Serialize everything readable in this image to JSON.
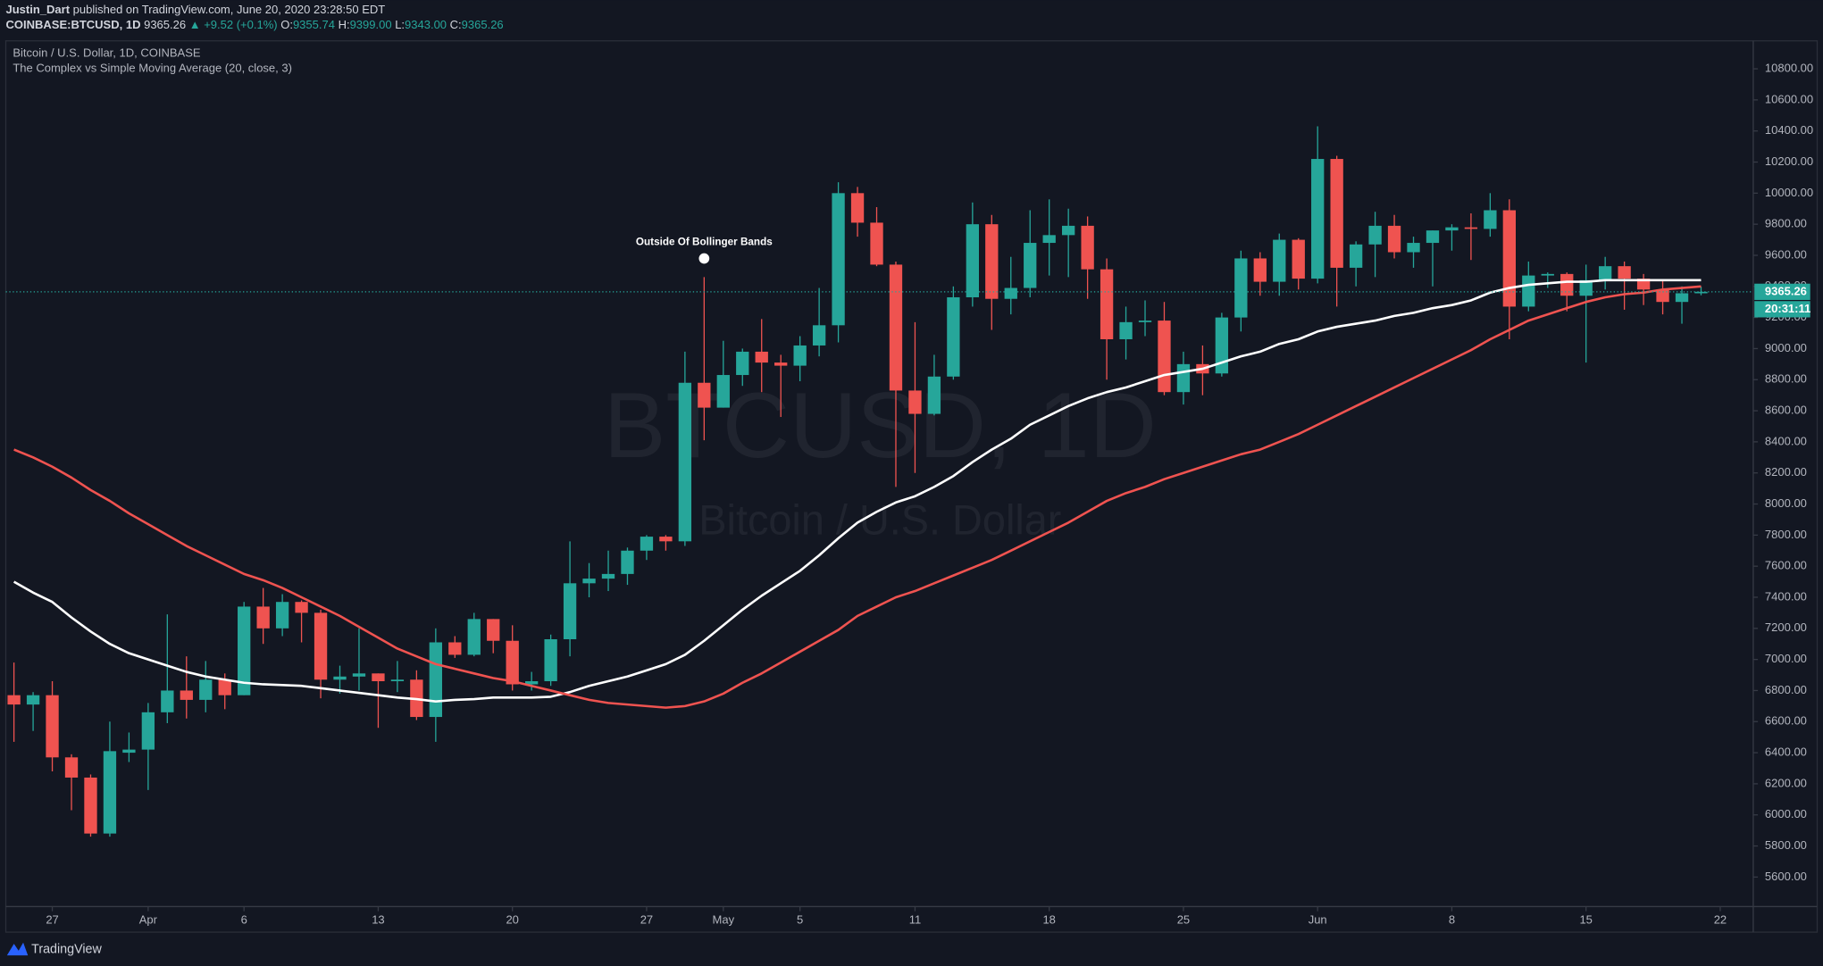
{
  "header": {
    "author": "Justin_Dart",
    "published": "published on TradingView.com, June 20, 2020 23:28:50 EDT",
    "ticker": "COINBASE:BTCUSD, 1D",
    "last": "9365.26",
    "change": "▲ +9.52 (+0.1%)",
    "ohlc": [
      {
        "label": "O:",
        "value": "9355.74"
      },
      {
        "label": "H:",
        "value": "9399.00"
      },
      {
        "label": "L:",
        "value": "9343.00"
      },
      {
        "label": "C:",
        "value": "9365.26"
      }
    ]
  },
  "footer": {
    "brand": "TradingView"
  },
  "chart_data": {
    "type": "candlestick",
    "title": "Bitcoin / U.S. Dollar, 1D, COINBASE",
    "subtitle": "The Complex vs Simple Moving Average (20, close, 3)",
    "watermark": "BTCUSD, 1D",
    "watermark_sub": "Bitcoin / U.S. Dollar",
    "up_color": "#26a69a",
    "down_color": "#ef5350",
    "grid": false,
    "categories": [
      "Mar 25",
      "Mar 26",
      "Mar 27",
      "Mar 28",
      "Mar 29",
      "Mar 30",
      "Mar 31",
      "Apr 1",
      "Apr 2",
      "Apr 3",
      "Apr 4",
      "Apr 5",
      "Apr 6",
      "Apr 7",
      "Apr 8",
      "Apr 9",
      "Apr 10",
      "Apr 11",
      "Apr 12",
      "Apr 13",
      "Apr 14",
      "Apr 15",
      "Apr 16",
      "Apr 17",
      "Apr 18",
      "Apr 19",
      "Apr 20",
      "Apr 21",
      "Apr 22",
      "Apr 23",
      "Apr 24",
      "Apr 25",
      "Apr 26",
      "Apr 27",
      "Apr 28",
      "Apr 29",
      "Apr 30",
      "May 1",
      "May 2",
      "May 3",
      "May 4",
      "May 5",
      "May 6",
      "May 7",
      "May 8",
      "May 9",
      "May 10",
      "May 11",
      "May 12",
      "May 13",
      "May 14",
      "May 15",
      "May 16",
      "May 17",
      "May 18",
      "May 19",
      "May 20",
      "May 21",
      "May 22",
      "May 23",
      "May 24",
      "May 25",
      "May 26",
      "May 27",
      "May 28",
      "May 29",
      "May 30",
      "May 31",
      "Jun 1",
      "Jun 2",
      "Jun 3",
      "Jun 4",
      "Jun 5",
      "Jun 6",
      "Jun 7",
      "Jun 8",
      "Jun 9",
      "Jun 10",
      "Jun 11",
      "Jun 12",
      "Jun 13",
      "Jun 14",
      "Jun 15",
      "Jun 16",
      "Jun 17",
      "Jun 18",
      "Jun 19",
      "Jun 20",
      "Jun 21",
      "Jun 22"
    ],
    "open": [
      6770,
      6710,
      6770,
      6370,
      6240,
      5880,
      6400,
      6420,
      6660,
      6800,
      6740,
      6870,
      6770,
      7340,
      7200,
      7370,
      7300,
      6870,
      6890,
      6910,
      6860,
      6870,
      6630,
      7110,
      7030,
      7260,
      7120,
      6840,
      6860,
      7130,
      7490,
      7520,
      7550,
      7700,
      7790,
      7760,
      8780,
      8620,
      8830,
      8980,
      8910,
      8890,
      9020,
      9150,
      10000,
      9810,
      9540,
      8730,
      8580,
      8820,
      9330,
      9800,
      9320,
      9390,
      9680,
      9730,
      9790,
      9510,
      9060,
      9170,
      9180,
      8720,
      8900,
      8840,
      9200,
      9580,
      9430,
      9700,
      9450,
      10220,
      9520,
      9670,
      9790,
      9620,
      9680,
      9760,
      9780,
      9770,
      9890,
      9270,
      9470,
      9480,
      9340,
      9440,
      9530,
      9450,
      9380,
      9300,
      9355.74,
      null
    ],
    "high": [
      6980,
      6790,
      6860,
      6390,
      6260,
      6600,
      6530,
      6720,
      7290,
      7020,
      6990,
      6910,
      7370,
      7460,
      7420,
      7380,
      7320,
      6960,
      7200,
      6910,
      6990,
      6930,
      7200,
      7150,
      7300,
      7260,
      7220,
      6920,
      7160,
      7760,
      7620,
      7700,
      7720,
      7800,
      7800,
      8980,
      9460,
      9050,
      9000,
      9190,
      8960,
      9080,
      9390,
      10070,
      10040,
      9910,
      9560,
      9170,
      8960,
      9400,
      9940,
      9860,
      9590,
      9890,
      9960,
      9900,
      9850,
      9580,
      9270,
      9310,
      9300,
      8980,
      9020,
      9230,
      9630,
      9620,
      9740,
      9710,
      10430,
      10240,
      9690,
      9880,
      9860,
      9720,
      9760,
      9800,
      9870,
      10000,
      9960,
      9560,
      9490,
      9490,
      9540,
      9590,
      9560,
      9480,
      9440,
      9400,
      9399,
      null
    ],
    "low": [
      6470,
      6540,
      6280,
      6030,
      5860,
      5860,
      6340,
      6160,
      6590,
      6620,
      6660,
      6680,
      6770,
      7100,
      7150,
      7110,
      6750,
      6780,
      6800,
      6560,
      6790,
      6610,
      6470,
      7010,
      7020,
      7040,
      6800,
      6800,
      6830,
      7020,
      7400,
      7440,
      7480,
      7640,
      7700,
      7730,
      8410,
      8620,
      8760,
      8720,
      8560,
      8790,
      8950,
      9040,
      9720,
      9530,
      8110,
      8200,
      8570,
      8800,
      9270,
      9120,
      9220,
      9330,
      9470,
      9460,
      9320,
      8800,
      8930,
      9080,
      8700,
      8640,
      8700,
      8820,
      9110,
      9340,
      9340,
      9380,
      9420,
      9270,
      9400,
      9460,
      9580,
      9520,
      9400,
      9630,
      9570,
      9720,
      9060,
      9240,
      9390,
      9240,
      8910,
      9380,
      9250,
      9280,
      9220,
      9160,
      9343,
      null
    ],
    "close": [
      6710,
      6770,
      6370,
      6240,
      5880,
      6410,
      6420,
      6660,
      6800,
      6740,
      6870,
      6770,
      7340,
      7200,
      7370,
      7300,
      6870,
      6890,
      6910,
      6860,
      6870,
      6630,
      7110,
      7030,
      7260,
      7120,
      6840,
      6860,
      7130,
      7490,
      7520,
      7550,
      7700,
      7790,
      7760,
      8780,
      8620,
      8830,
      8980,
      8910,
      8890,
      9020,
      9150,
      10000,
      9810,
      9540,
      8730,
      8580,
      8820,
      9330,
      9800,
      9320,
      9390,
      9680,
      9730,
      9790,
      9510,
      9060,
      9170,
      9180,
      8720,
      8900,
      8840,
      9200,
      9580,
      9430,
      9700,
      9450,
      10220,
      9520,
      9670,
      9790,
      9620,
      9680,
      9760,
      9780,
      9770,
      9890,
      9270,
      9470,
      9480,
      9340,
      9440,
      9530,
      9450,
      9380,
      9300,
      9356,
      9365.26,
      null
    ],
    "lines": [
      {
        "color": "#ffffff",
        "values": [
          7500,
          7430,
          7370,
          7270,
          7180,
          7100,
          7040,
          7000,
          6960,
          6920,
          6890,
          6870,
          6850,
          6840,
          6835,
          6830,
          6815,
          6800,
          6785,
          6770,
          6755,
          6745,
          6730,
          6740,
          6745,
          6755,
          6755,
          6755,
          6760,
          6790,
          6830,
          6860,
          6890,
          6930,
          6970,
          7030,
          7120,
          7220,
          7320,
          7410,
          7490,
          7570,
          7670,
          7780,
          7880,
          7950,
          8010,
          8050,
          8110,
          8180,
          8270,
          8350,
          8420,
          8510,
          8570,
          8630,
          8680,
          8720,
          8750,
          8790,
          8830,
          8850,
          8870,
          8910,
          8950,
          8980,
          9030,
          9060,
          9110,
          9140,
          9160,
          9180,
          9210,
          9230,
          9260,
          9280,
          9310,
          9360,
          9390,
          9410,
          9420,
          9430,
          9430,
          9440,
          9440,
          9440,
          9440,
          9440,
          9440,
          null
        ]
      },
      {
        "color": "#ef5350",
        "values": [
          8350,
          8300,
          8240,
          8170,
          8090,
          8020,
          7940,
          7870,
          7800,
          7730,
          7670,
          7610,
          7550,
          7510,
          7460,
          7400,
          7340,
          7280,
          7210,
          7140,
          7070,
          7020,
          6970,
          6940,
          6910,
          6880,
          6860,
          6830,
          6800,
          6770,
          6740,
          6720,
          6710,
          6700,
          6690,
          6700,
          6730,
          6780,
          6850,
          6910,
          6980,
          7050,
          7120,
          7190,
          7280,
          7340,
          7400,
          7440,
          7490,
          7540,
          7590,
          7640,
          7700,
          7760,
          7820,
          7880,
          7950,
          8020,
          8070,
          8110,
          8160,
          8200,
          8240,
          8280,
          8320,
          8350,
          8400,
          8450,
          8510,
          8570,
          8630,
          8690,
          8750,
          8810,
          8870,
          8930,
          8990,
          9060,
          9120,
          9180,
          9220,
          9260,
          9300,
          9330,
          9350,
          9360,
          9380,
          9390,
          9400,
          null
        ]
      }
    ],
    "ylim": [
      5410,
      10980
    ],
    "yticks": [
      {
        "value": 5600,
        "label": "5600.00"
      },
      {
        "value": 5800,
        "label": "5800.00"
      },
      {
        "value": 6000,
        "label": "6000.00"
      },
      {
        "value": 6200,
        "label": "6200.00"
      },
      {
        "value": 6400,
        "label": "6400.00"
      },
      {
        "value": 6600,
        "label": "6600.00"
      },
      {
        "value": 6800,
        "label": "6800.00"
      },
      {
        "value": 7000,
        "label": "7000.00"
      },
      {
        "value": 7200,
        "label": "7200.00"
      },
      {
        "value": 7400,
        "label": "7400.00"
      },
      {
        "value": 7600,
        "label": "7600.00"
      },
      {
        "value": 7800,
        "label": "7800.00"
      },
      {
        "value": 8000,
        "label": "8000.00"
      },
      {
        "value": 8200,
        "label": "8200.00"
      },
      {
        "value": 8400,
        "label": "8400.00"
      },
      {
        "value": 8600,
        "label": "8600.00"
      },
      {
        "value": 8800,
        "label": "8800.00"
      },
      {
        "value": 9000,
        "label": "9000.00"
      },
      {
        "value": 9200,
        "label": "9200.00"
      },
      {
        "value": 9400,
        "label": "9400.00"
      },
      {
        "value": 9600,
        "label": "9600.00"
      },
      {
        "value": 9800,
        "label": "9800.00"
      },
      {
        "value": 10000,
        "label": "10000.00"
      },
      {
        "value": 10200,
        "label": "10200.00"
      },
      {
        "value": 10400,
        "label": "10400.00"
      },
      {
        "value": 10600,
        "label": "10600.00"
      },
      {
        "value": 10800,
        "label": "10800.00"
      }
    ],
    "xticks": [
      {
        "value": "Mar 27",
        "label": "27"
      },
      {
        "value": "Apr 1",
        "label": "Apr"
      },
      {
        "value": "Apr 6",
        "label": "6"
      },
      {
        "value": "Apr 13",
        "label": "13"
      },
      {
        "value": "Apr 20",
        "label": "20"
      },
      {
        "value": "Apr 27",
        "label": "27"
      },
      {
        "value": "May 1",
        "label": "May"
      },
      {
        "value": "May 5",
        "label": "5"
      },
      {
        "value": "May 11",
        "label": "11"
      },
      {
        "value": "May 18",
        "label": "18"
      },
      {
        "value": "May 25",
        "label": "25"
      },
      {
        "value": "Jun 1",
        "label": "Jun"
      },
      {
        "value": "Jun 8",
        "label": "8"
      },
      {
        "value": "Jun 15",
        "label": "15"
      },
      {
        "value": "Jun 22",
        "label": "22"
      }
    ],
    "last_price": 9365.26,
    "countdown": "20:31:11",
    "annotation": {
      "text": "Outside Of Bollinger Bands",
      "x": "Apr 30",
      "y": 9580
    }
  }
}
